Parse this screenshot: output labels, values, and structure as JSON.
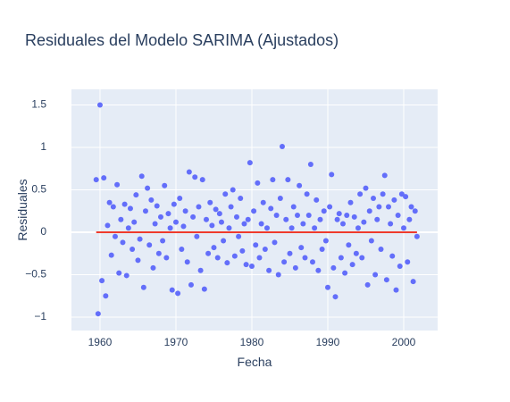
{
  "chart_data": {
    "type": "scatter",
    "title": "Residuales del Modelo SARIMA (Ajustados)",
    "x_label": "Fecha",
    "y_label": "Residuales",
    "color": "#636efa",
    "grid": true,
    "xlim": [
      1956.24,
      2004.47
    ],
    "ylim": [
      -1.158,
      1.684
    ],
    "xticks": [
      1960,
      1970,
      1980,
      1990,
      2000
    ],
    "yticks": [
      {
        "value": -1,
        "label": "−1"
      },
      {
        "value": -0.5,
        "label": "−0.5"
      },
      0,
      0.5,
      1,
      1.5
    ],
    "reference_line": {
      "y": 0,
      "x": [
        1959.5,
        2001.75
      ],
      "color": "#ef3b2c"
    },
    "x": [
      1959.5,
      1959.75,
      1960,
      1960.25,
      1960.5,
      1960.75,
      1961,
      1961.25,
      1961.5,
      1961.75,
      1962,
      1962.25,
      1962.5,
      1962.75,
      1963,
      1963.25,
      1963.5,
      1963.75,
      1964,
      1964.25,
      1964.5,
      1964.75,
      1965,
      1965.25,
      1965.5,
      1965.75,
      1966,
      1966.25,
      1966.5,
      1966.75,
      1967,
      1967.25,
      1967.5,
      1967.75,
      1968,
      1968.25,
      1968.5,
      1968.75,
      1969,
      1969.25,
      1969.5,
      1969.75,
      1970,
      1970.25,
      1970.5,
      1970.75,
      1971,
      1971.25,
      1971.5,
      1971.75,
      1972,
      1972.25,
      1972.5,
      1972.75,
      1973,
      1973.25,
      1973.5,
      1973.75,
      1974,
      1974.25,
      1974.5,
      1974.75,
      1975,
      1975.25,
      1975.5,
      1975.75,
      1976,
      1976.25,
      1976.5,
      1976.75,
      1977,
      1977.25,
      1977.5,
      1977.75,
      1978,
      1978.25,
      1978.5,
      1978.75,
      1979,
      1979.25,
      1979.5,
      1979.75,
      1980,
      1980.25,
      1980.5,
      1980.75,
      1981,
      1981.25,
      1981.5,
      1981.75,
      1982,
      1982.25,
      1982.5,
      1982.75,
      1983,
      1983.25,
      1983.5,
      1983.75,
      1984,
      1984.25,
      1984.5,
      1984.75,
      1985,
      1985.25,
      1985.5,
      1985.75,
      1986,
      1986.25,
      1986.5,
      1986.75,
      1987,
      1987.25,
      1987.5,
      1987.75,
      1988,
      1988.25,
      1988.5,
      1988.75,
      1989,
      1989.25,
      1989.5,
      1989.75,
      1990,
      1990.25,
      1990.5,
      1990.75,
      1991,
      1991.25,
      1991.5,
      1991.75,
      1992,
      1992.25,
      1992.5,
      1992.75,
      1993,
      1993.25,
      1993.5,
      1993.75,
      1994,
      1994.25,
      1994.5,
      1994.75,
      1995,
      1995.25,
      1995.5,
      1995.75,
      1996,
      1996.25,
      1996.5,
      1996.75,
      1997,
      1997.25,
      1997.5,
      1997.75,
      1998,
      1998.25,
      1998.5,
      1998.75,
      1999,
      1999.25,
      1999.5,
      1999.75,
      2000,
      2000.25,
      2000.5,
      2000.75,
      2001,
      2001.25,
      2001.5,
      2001.75
    ],
    "values": [
      0.62,
      -0.96,
      1.5,
      -0.57,
      0.64,
      -0.75,
      0.08,
      0.35,
      -0.27,
      0.3,
      -0.05,
      0.56,
      -0.48,
      0.15,
      -0.12,
      0.33,
      -0.51,
      0.05,
      0.28,
      -0.2,
      0.12,
      0.44,
      -0.33,
      -0.08,
      0.66,
      -0.65,
      0.25,
      0.52,
      -0.15,
      0.38,
      -0.42,
      0.1,
      0.31,
      -0.25,
      0.18,
      -0.1,
      0.55,
      -0.3,
      0.22,
      0.05,
      -0.68,
      0.33,
      0.12,
      -0.72,
      0.4,
      -0.2,
      0.07,
      0.25,
      -0.35,
      0.71,
      -0.62,
      0.18,
      0.65,
      -0.05,
      0.3,
      -0.45,
      0.62,
      -0.67,
      0.15,
      -0.25,
      0.35,
      0.08,
      -0.18,
      0.27,
      -0.3,
      0.22,
      0.12,
      -0.1,
      0.45,
      -0.36,
      0.05,
      0.3,
      0.5,
      -0.28,
      0.18,
      -0.05,
      0.4,
      -0.22,
      0.1,
      -0.38,
      0.15,
      0.82,
      -0.4,
      0.25,
      -0.15,
      0.58,
      -0.3,
      0.1,
      0.35,
      -0.2,
      0.05,
      -0.45,
      0.28,
      0.62,
      -0.12,
      0.2,
      -0.5,
      0.4,
      1.01,
      -0.35,
      0.15,
      0.62,
      -0.25,
      0.05,
      0.3,
      -0.42,
      0.2,
      0.55,
      -0.18,
      0.1,
      -0.3,
      0.45,
      0.2,
      0.8,
      -0.35,
      0.05,
      0.38,
      -0.45,
      0.15,
      -0.2,
      0.25,
      -0.1,
      -0.65,
      0.3,
      0.68,
      -0.42,
      -0.76,
      0.15,
      0.22,
      -0.3,
      0.1,
      -0.48,
      0.2,
      -0.15,
      0.35,
      -0.38,
      0.18,
      -0.25,
      0.05,
      0.45,
      -0.3,
      0.12,
      0.52,
      -0.62,
      0.25,
      -0.1,
      0.4,
      -0.5,
      0.15,
      0.3,
      -0.2,
      0.45,
      0.67,
      -0.56,
      0.3,
      0.1,
      -0.28,
      0.38,
      -0.68,
      0.2,
      -0.4,
      0.45,
      0.05,
      0.42,
      -0.35,
      0.15,
      0.3,
      -0.58,
      0.25,
      -0.05
    ]
  }
}
